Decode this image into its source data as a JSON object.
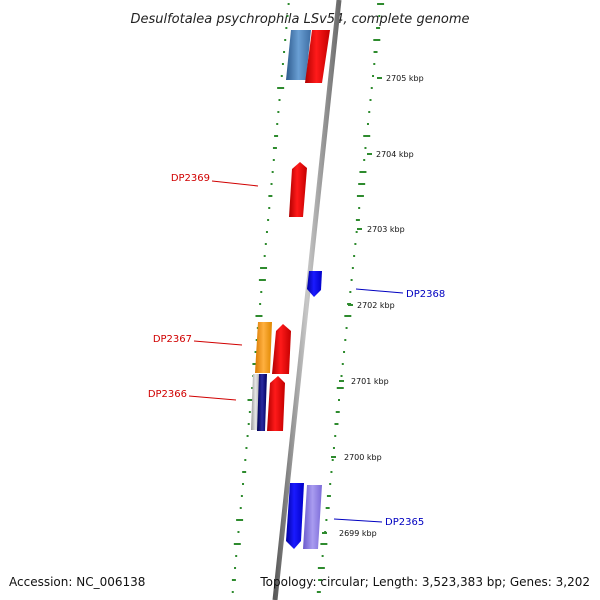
{
  "title": "Desulfotalea psychrophila LSv54, complete genome",
  "footer": {
    "accession": "Accession: NC_006138",
    "summary": "Topology: circular; Length: 3,523,383 bp; Genes: 3,202"
  },
  "colors": {
    "backbone": "#8a8a8a",
    "gc_dots": "#2e8b2e",
    "forward_label": "#d00000",
    "reverse_label": "#0000c0"
  },
  "ticks": [
    {
      "label": "2705 kbp"
    },
    {
      "label": "2704 kbp"
    },
    {
      "label": "2703 kbp"
    },
    {
      "label": "2702 kbp"
    },
    {
      "label": "2701 kbp"
    },
    {
      "label": "2700 kbp"
    },
    {
      "label": "2699 kbp"
    }
  ],
  "genes": [
    {
      "label": "DP2369",
      "strand": "forward"
    },
    {
      "label": "DP2368",
      "strand": "reverse"
    },
    {
      "label": "DP2367",
      "strand": "forward"
    },
    {
      "label": "DP2366",
      "strand": "forward"
    },
    {
      "label": "DP2365",
      "strand": "reverse"
    }
  ]
}
